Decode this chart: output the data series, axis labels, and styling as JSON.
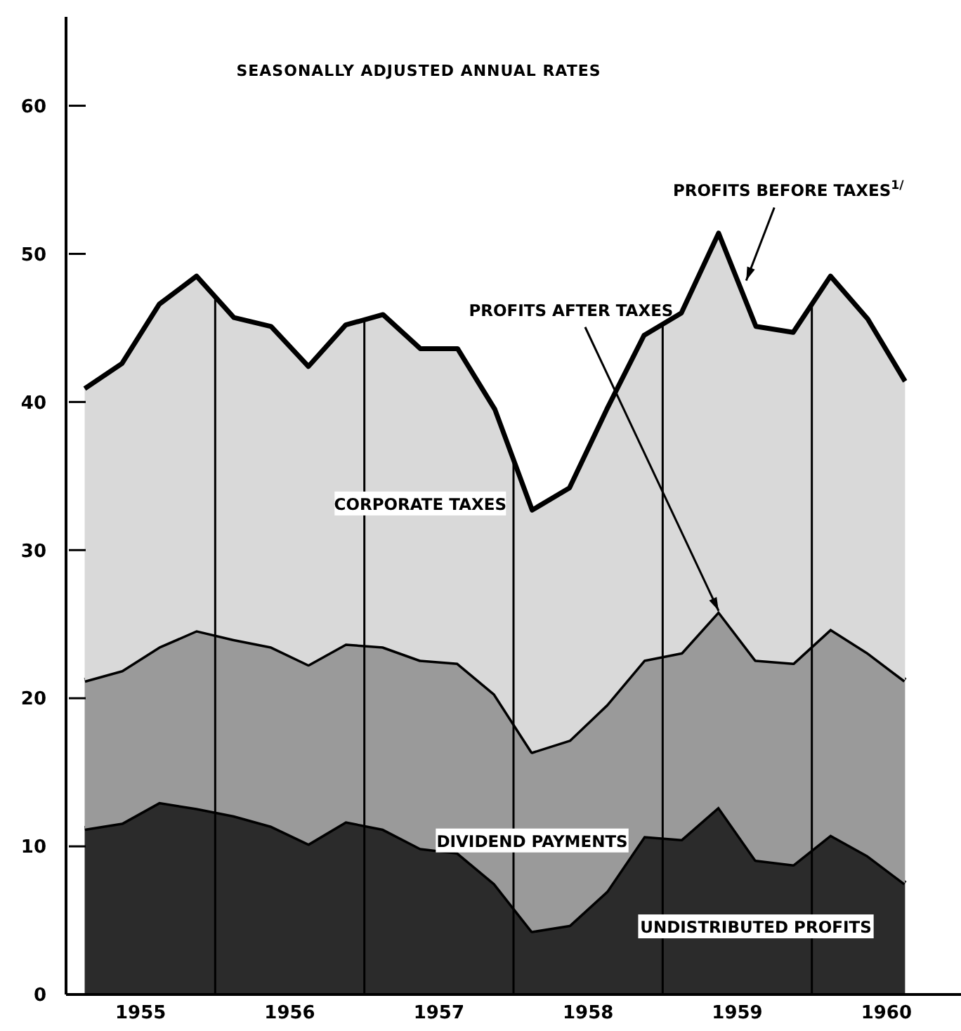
{
  "chart_data": {
    "type": "area",
    "stacked": true,
    "title": "SEASONALLY ADJUSTED ANNUAL RATES",
    "x": [
      1955.125,
      1955.375,
      1955.625,
      1955.875,
      1956.125,
      1956.375,
      1956.625,
      1956.875,
      1957.125,
      1957.375,
      1957.625,
      1957.875,
      1958.125,
      1958.375,
      1958.625,
      1958.875,
      1959.125,
      1959.375,
      1959.625,
      1959.875,
      1960.125,
      1960.375,
      1960.625
    ],
    "series": [
      {
        "name": "UNDISTRIBUTED PROFITS",
        "color": "#2b2b2b",
        "values": [
          11.2,
          11.6,
          13.0,
          12.6,
          12.1,
          11.4,
          10.2,
          11.7,
          11.2,
          9.9,
          9.6,
          7.5,
          4.3,
          4.7,
          7.0,
          10.7,
          10.5,
          12.7,
          9.1,
          8.8,
          10.8,
          9.4,
          7.5
        ]
      },
      {
        "name": "DIVIDEND PAYMENTS",
        "color": "#9a9a9a",
        "values": [
          10.0,
          10.3,
          10.5,
          12.0,
          11.9,
          12.1,
          12.1,
          12.0,
          12.3,
          12.7,
          12.8,
          12.8,
          12.1,
          12.5,
          12.6,
          11.9,
          12.6,
          13.2,
          13.5,
          13.6,
          13.9,
          13.7,
          13.7
        ]
      },
      {
        "name": "CORPORATE TAXES",
        "color": "#d9d9d9",
        "values": [
          19.7,
          20.7,
          23.1,
          23.9,
          21.7,
          21.6,
          20.1,
          21.5,
          22.4,
          21.0,
          21.2,
          19.2,
          16.3,
          17.0,
          19.9,
          21.9,
          22.9,
          25.5,
          22.5,
          22.3,
          23.8,
          22.5,
          20.2
        ]
      }
    ],
    "xlim": [
      1955,
      1961
    ],
    "xticks": [
      {
        "value": 1955.5,
        "label": "1955"
      },
      {
        "value": 1956.5,
        "label": "1956"
      },
      {
        "value": 1957.5,
        "label": "1957"
      },
      {
        "value": 1958.5,
        "label": "1958"
      },
      {
        "value": 1959.5,
        "label": "1959"
      },
      {
        "value": 1960.5,
        "label": "1960"
      }
    ],
    "ylim": [
      0,
      66
    ],
    "yticks": [
      0,
      10,
      20,
      30,
      40,
      50,
      60
    ],
    "ref_lines": [
      {
        "axis": "x",
        "value": 1956,
        "color": "#000000"
      },
      {
        "axis": "x",
        "value": 1957,
        "color": "#000000"
      },
      {
        "axis": "x",
        "value": 1958,
        "color": "#000000"
      },
      {
        "axis": "x",
        "value": 1959,
        "color": "#000000"
      },
      {
        "axis": "x",
        "value": 1960,
        "color": "#000000"
      }
    ],
    "annotations": [
      {
        "text": "PROFITS AFTER TAXES",
        "x": 1959.375,
        "y": 25.9
      },
      {
        "text": "PROFITS BEFORE TAXES$^{1/}$",
        "x": 1959.56,
        "y": 48.2
      }
    ],
    "grid": false,
    "legend": false,
    "marker": "none",
    "line_style": "solid"
  }
}
